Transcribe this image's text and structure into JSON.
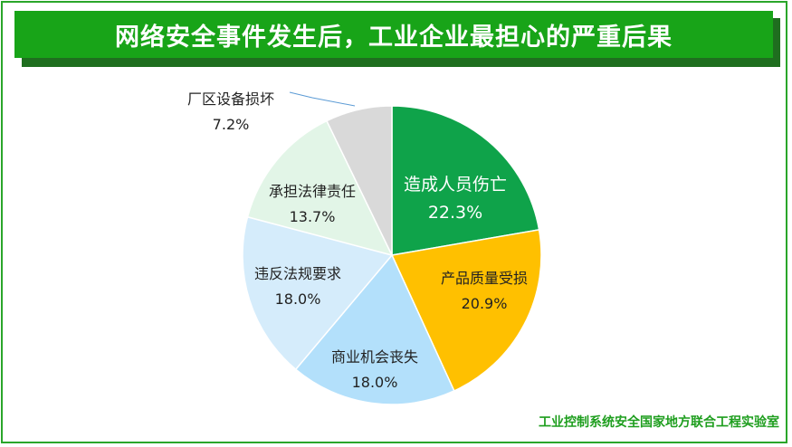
{
  "header": {
    "title": "网络安全事件发生后，工业企业最担心的严重后果"
  },
  "footer": {
    "source": "工业控制系统安全国家地方联合工程实验室"
  },
  "colors": {
    "frame": "#2aa62a",
    "banner": "#18a418",
    "banner_shadow": "#1f6e1f",
    "footer_text": "#1e9e1e"
  },
  "chart_data": {
    "type": "pie",
    "title": "网络安全事件发生后，工业企业最担心的严重后果",
    "unit": "%",
    "start": "12 o'clock, clockwise",
    "legend": "none (data labels)",
    "slices": [
      {
        "label": "造成人员伤亡",
        "value": 22.3,
        "value_text": "22.3%",
        "color": "#0fa34a",
        "label_color": "#ffffff"
      },
      {
        "label": "产品质量受损",
        "value": 20.9,
        "value_text": "20.9%",
        "color": "#ffc000",
        "label_color": "#222222"
      },
      {
        "label": "商业机会丧失",
        "value": 18.0,
        "value_text": "18.0%",
        "color": "#b3e0fb",
        "label_color": "#222222"
      },
      {
        "label": "违反法规要求",
        "value": 18.0,
        "value_text": "18.0%",
        "color": "#d5ecfb",
        "label_color": "#222222"
      },
      {
        "label": "承担法律责任",
        "value": 13.7,
        "value_text": "13.7%",
        "color": "#e2f5e7",
        "label_color": "#222222"
      },
      {
        "label": "厂区设备损坏",
        "value": 7.2,
        "value_text": "7.2%",
        "color": "#d9d9d9",
        "label_color": "#222222"
      }
    ]
  }
}
